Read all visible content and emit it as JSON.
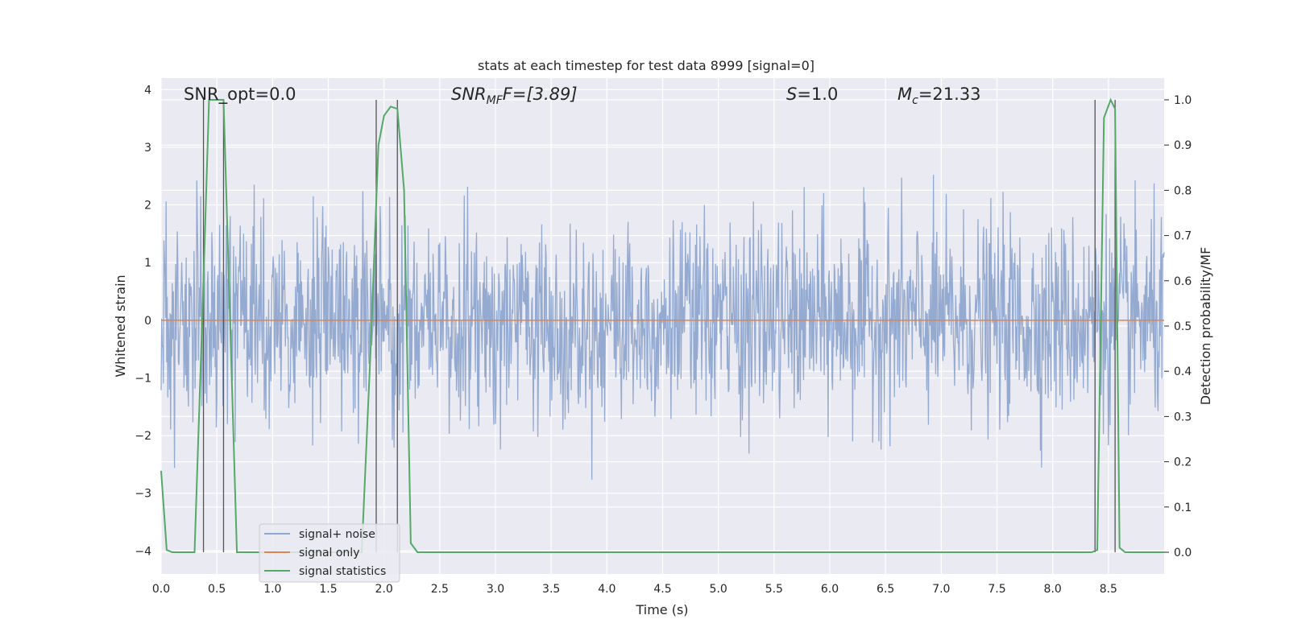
{
  "chart_data": {
    "type": "line",
    "title": "stats at each timestep for test data 8999 [signal=0]",
    "xlabel": "Time (s)",
    "ylabel": "Whitened strain",
    "y2label": "Detection probability/MF",
    "xlim": [
      0,
      9.0
    ],
    "ylim": [
      -4.4,
      4.2
    ],
    "y2lim": [
      -0.048,
      1.048
    ],
    "xticks": [
      "0.0",
      "0.5",
      "1.0",
      "1.5",
      "2.0",
      "2.5",
      "3.0",
      "3.5",
      "4.0",
      "4.5",
      "5.0",
      "5.5",
      "6.0",
      "6.5",
      "7.0",
      "7.5",
      "8.0",
      "8.5"
    ],
    "yticks": [
      "4",
      "3",
      "2",
      "1",
      "0",
      "−1",
      "−2",
      "−3",
      "−4"
    ],
    "y2ticks": [
      "1.0",
      "0.9",
      "0.8",
      "0.7",
      "0.6",
      "0.5",
      "0.4",
      "0.3",
      "0.2",
      "0.1",
      "0.0"
    ],
    "grid": true,
    "legend_position": "lower-left",
    "annotations": {
      "snr_opt": "SNR_opt=0.0",
      "snr_mf_prefix": "SNR",
      "snr_mf_sub": "MF",
      "snr_mf_suffix": "F=[3.89]",
      "s_prefix": "S",
      "s_suffix": "=1.0",
      "mc_prefix": "M",
      "mc_sub": "c",
      "mc_suffix": "=21.33"
    },
    "series": [
      {
        "name": "signal+ noise",
        "axis": "left",
        "color": "#8fa6cf",
        "noise_std": 0.85,
        "samples": 900
      },
      {
        "name": "signal only",
        "axis": "left",
        "color": "#dd8452",
        "x": [
          0,
          9.0
        ],
        "y": [
          0,
          0
        ]
      },
      {
        "name": "signal statistics",
        "axis": "right",
        "color": "#55a868",
        "x": [
          0.0,
          0.05,
          0.1,
          0.3,
          0.38,
          0.43,
          0.5,
          0.56,
          0.62,
          0.68,
          0.8,
          1.8,
          1.88,
          1.95,
          2.0,
          2.06,
          2.12,
          2.18,
          2.24,
          2.3,
          8.35,
          8.4,
          8.46,
          8.52,
          8.56,
          8.6,
          8.65,
          8.7,
          9.0
        ],
        "y": [
          0.18,
          0.005,
          0.0,
          0.0,
          0.6,
          1.0,
          1.0,
          1.0,
          0.5,
          0.0,
          0.0,
          0.0,
          0.45,
          0.9,
          0.965,
          0.985,
          0.98,
          0.8,
          0.02,
          0.0,
          0.0,
          0.005,
          0.96,
          1.0,
          0.98,
          0.01,
          0.0,
          0.0,
          0.0
        ]
      }
    ],
    "vertical_lines": [
      0.38,
      0.56,
      1.93,
      2.12,
      8.38,
      8.56
    ],
    "colors": {
      "plot_bg": "#eaeaf2",
      "grid": "#ffffff",
      "vline": "#555555",
      "text": "#262626"
    }
  }
}
